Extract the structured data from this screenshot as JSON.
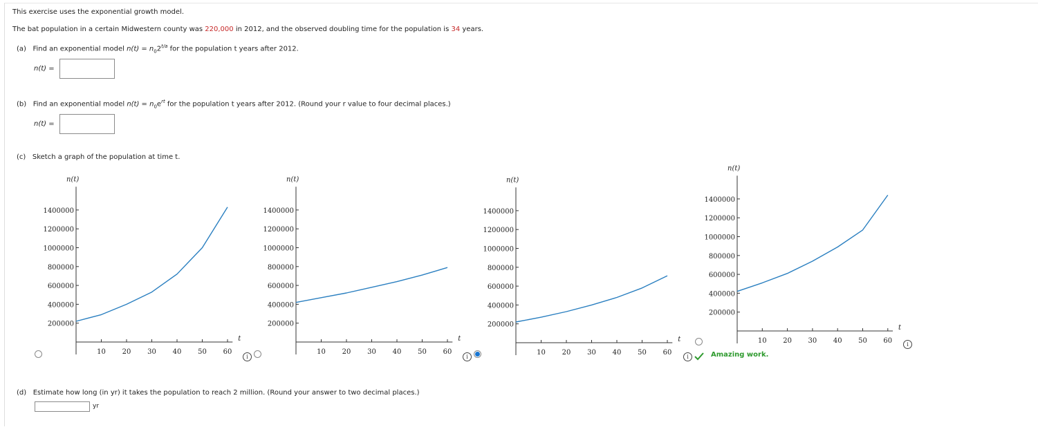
{
  "intro": "This exercise uses the exponential growth model.",
  "problem": {
    "pre": "The bat population in a certain Midwestern county was ",
    "population": "220,000",
    "mid": " in 2012, and the observed doubling time for the population is ",
    "doubling": "34",
    "post": " years."
  },
  "part_a": {
    "label": "(a)",
    "text_pre": "Find an exponential model ",
    "func": "n(t)",
    "eq": " = n",
    "sub": "0",
    "base": "2",
    "sup": "t/a",
    "text_post": " for the population t years after 2012.",
    "answer_label": "n(t)  =",
    "answer_value": ""
  },
  "part_b": {
    "label": "(b)",
    "text_pre": "Find an exponential model ",
    "func": "n(t)",
    "eq": " = n",
    "sub": "0",
    "base": "e",
    "sup": "rt",
    "text_post": " for the population t years after 2012. (Round your r value to four decimal places.)",
    "answer_label": "n(t)  =",
    "answer_value": ""
  },
  "part_c": {
    "label": "(c)",
    "text": "Sketch a graph of the population at time t."
  },
  "part_d": {
    "label": "(d)",
    "text": "Estimate how long (in yr) it takes the population to reach 2 million. (Round your answer to two decimal places.)",
    "answer_value": "",
    "unit": "yr"
  },
  "feedback": "Amazing work.",
  "icons": {
    "info": "info-icon",
    "check": "check-icon"
  },
  "colors": {
    "curve": "#2a7fc0",
    "highlight": "#c62828",
    "correct": "#2e9a2e",
    "radio_selected": "#1976d2"
  },
  "chart_data": [
    {
      "type": "line",
      "ylabel": "n(t)",
      "xlabel": "t",
      "xticks": [
        10,
        20,
        30,
        40,
        50,
        60
      ],
      "yticks": [
        200000,
        400000,
        600000,
        800000,
        1000000,
        1200000,
        1400000
      ],
      "xlim": [
        0,
        62
      ],
      "ylim": [
        0,
        1500000
      ],
      "series": [
        {
          "x": [
            0,
            10,
            20,
            30,
            40,
            50,
            60
          ],
          "y": [
            220000,
            290000,
            400000,
            530000,
            720000,
            1000000,
            1430000
          ]
        }
      ],
      "selected": false
    },
    {
      "type": "line",
      "ylabel": "n(t)",
      "xlabel": "t",
      "xticks": [
        10,
        20,
        30,
        40,
        50,
        60
      ],
      "yticks": [
        200000,
        400000,
        600000,
        800000,
        1000000,
        1200000,
        1400000
      ],
      "xlim": [
        0,
        62
      ],
      "ylim": [
        0,
        1500000
      ],
      "series": [
        {
          "x": [
            0,
            10,
            20,
            30,
            40,
            50,
            60
          ],
          "y": [
            420000,
            470000,
            520000,
            580000,
            640000,
            710000,
            790000
          ]
        }
      ],
      "selected": false
    },
    {
      "type": "line",
      "ylabel": "n(t)",
      "xlabel": "t",
      "xticks": [
        10,
        20,
        30,
        40,
        50,
        60
      ],
      "yticks": [
        200000,
        400000,
        600000,
        800000,
        1000000,
        1200000,
        1400000
      ],
      "xlim": [
        0,
        62
      ],
      "ylim": [
        0,
        1500000
      ],
      "series": [
        {
          "x": [
            0,
            10,
            20,
            30,
            40,
            50,
            60
          ],
          "y": [
            220000,
            270000,
            330000,
            400000,
            480000,
            580000,
            710000
          ]
        }
      ],
      "selected": true
    },
    {
      "type": "line",
      "ylabel": "n(t)",
      "xlabel": "t",
      "xticks": [
        10,
        20,
        30,
        40,
        50,
        60
      ],
      "yticks": [
        200000,
        400000,
        600000,
        800000,
        1000000,
        1200000,
        1400000
      ],
      "xlim": [
        0,
        62
      ],
      "ylim": [
        0,
        1500000
      ],
      "series": [
        {
          "x": [
            0,
            10,
            20,
            30,
            40,
            50,
            60
          ],
          "y": [
            420000,
            510000,
            610000,
            740000,
            890000,
            1070000,
            1440000
          ]
        }
      ],
      "selected": false
    }
  ]
}
